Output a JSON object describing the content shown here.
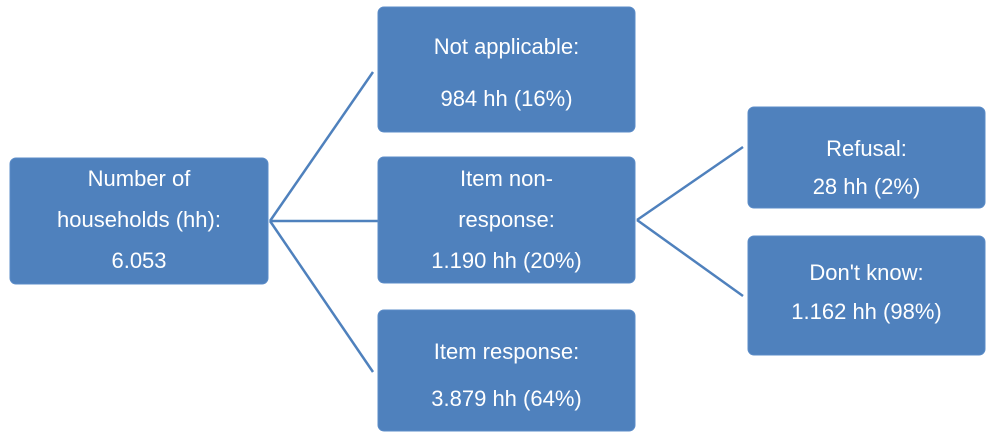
{
  "nodes": [
    {
      "lines": [
        "Number of",
        "households (hh):",
        "6.053"
      ]
    },
    {
      "lines": [
        "Not applicable:",
        "984 hh (16%)"
      ]
    },
    {
      "lines": [
        "Item non-",
        "response:",
        "1.190 hh (20%)"
      ]
    },
    {
      "lines": [
        "Item response:",
        "3.879 hh (64%)"
      ]
    },
    {
      "lines": [
        "Refusal:",
        "28 hh (2%)"
      ]
    },
    {
      "lines": [
        "Don't know:",
        "1.162 hh (98%)"
      ]
    }
  ]
}
